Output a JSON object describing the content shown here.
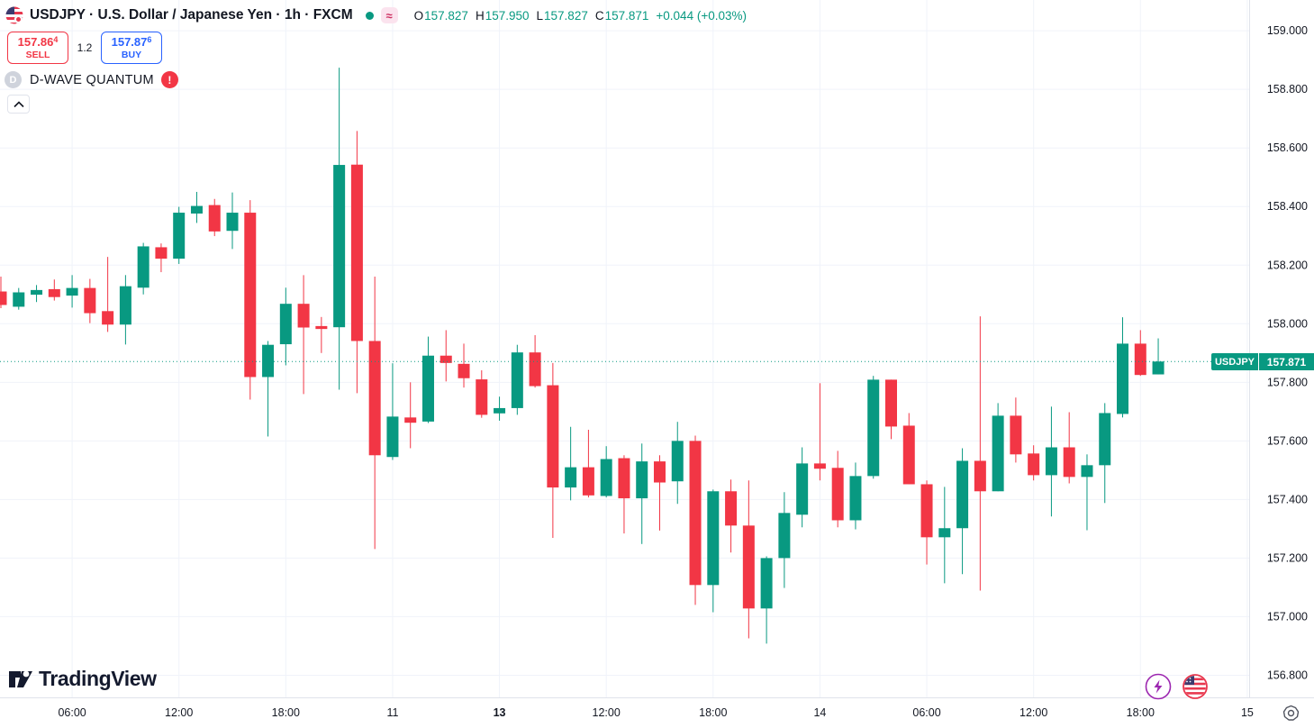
{
  "colors": {
    "up": "#089981",
    "down": "#F23645",
    "buy_blue": "#2962FF",
    "sell_red": "#F23645",
    "grid": "#F0F3FA",
    "axis_border": "#E0E3EB",
    "axis_text": "#131722",
    "last_price_line": "#089981",
    "lightning_purple": "#9C27B0",
    "flag_red": "#E8384F",
    "flag_blue": "#3C3B6E"
  },
  "header": {
    "title": "USDJPY · U.S. Dollar / Japanese Yen · 1h · FXCM",
    "approx_glyph": "≈",
    "ohlc": {
      "o_label": "O",
      "o": "157.827",
      "h_label": "H",
      "h": "157.950",
      "l_label": "L",
      "l": "157.827",
      "c_label": "C",
      "c": "157.871",
      "change": "+0.044 (+0.03%)"
    }
  },
  "trade_panel": {
    "sell_price": "157.86",
    "sell_sup": "4",
    "sell_label": "SELL",
    "spread": "1.2",
    "buy_price": "157.87",
    "buy_sup": "6",
    "buy_label": "BUY"
  },
  "alert_row": {
    "badge": "D",
    "name": "D-WAVE QUANTUM",
    "warning": "!"
  },
  "collapse_button": {
    "direction": "up"
  },
  "logo": {
    "text": "TradingView"
  },
  "price_badge": {
    "symbol": "USDJPY",
    "value": "157.871"
  },
  "chart_data": {
    "type": "candlestick",
    "symbol": "USDJPY",
    "interval": "1h",
    "exchange": "FXCM",
    "last_price": 157.871,
    "ylim": [
      156.723,
      159.105
    ],
    "grid": true,
    "y_ticks": [
      159.0,
      158.8,
      158.6,
      158.4,
      158.2,
      158.0,
      157.8,
      157.6,
      157.4,
      157.2,
      157.0,
      156.8
    ],
    "x_ticks": [
      {
        "i": 4,
        "label": "06:00",
        "bold": false
      },
      {
        "i": 10,
        "label": "12:00",
        "bold": false
      },
      {
        "i": 16,
        "label": "18:00",
        "bold": false
      },
      {
        "i": 22,
        "label": "11",
        "bold": false
      },
      {
        "i": 28,
        "label": "13",
        "bold": true
      },
      {
        "i": 34,
        "label": "12:00",
        "bold": false
      },
      {
        "i": 40,
        "label": "18:00",
        "bold": false
      },
      {
        "i": 46,
        "label": "14",
        "bold": false
      },
      {
        "i": 52,
        "label": "06:00",
        "bold": false
      },
      {
        "i": 58,
        "label": "12:00",
        "bold": false
      },
      {
        "i": 64,
        "label": "18:00",
        "bold": false
      },
      {
        "i": 70,
        "label": "15",
        "bold": false
      }
    ],
    "candles": [
      [
        158.11,
        158.161,
        158.053,
        158.064
      ],
      [
        158.058,
        158.122,
        158.048,
        158.107
      ],
      [
        158.099,
        158.132,
        158.074,
        158.115
      ],
      [
        158.118,
        158.151,
        158.079,
        158.091
      ],
      [
        158.096,
        158.166,
        158.055,
        158.122
      ],
      [
        158.122,
        158.153,
        158.002,
        158.036
      ],
      [
        158.043,
        158.228,
        157.972,
        157.997
      ],
      [
        157.997,
        158.166,
        157.929,
        158.128
      ],
      [
        158.123,
        158.276,
        158.1,
        158.264
      ],
      [
        158.261,
        158.274,
        158.176,
        158.222
      ],
      [
        158.222,
        158.399,
        158.204,
        158.379
      ],
      [
        158.376,
        158.45,
        158.344,
        158.402
      ],
      [
        158.405,
        158.426,
        158.299,
        158.315
      ],
      [
        158.317,
        158.448,
        158.255,
        158.379
      ],
      [
        158.379,
        158.422,
        157.741,
        157.818
      ],
      [
        157.818,
        157.941,
        157.615,
        157.928
      ],
      [
        157.93,
        158.123,
        157.858,
        158.068
      ],
      [
        158.068,
        158.166,
        157.76,
        157.987
      ],
      [
        157.992,
        158.023,
        157.9,
        157.982
      ],
      [
        157.988,
        158.874,
        157.775,
        158.542
      ],
      [
        158.543,
        158.658,
        157.763,
        157.941
      ],
      [
        157.941,
        158.161,
        157.231,
        157.551
      ],
      [
        157.545,
        157.865,
        157.535,
        157.683
      ],
      [
        157.68,
        157.8,
        157.575,
        157.662
      ],
      [
        157.666,
        157.956,
        157.661,
        157.891
      ],
      [
        157.891,
        157.978,
        157.803,
        157.866
      ],
      [
        157.863,
        157.932,
        157.782,
        157.814
      ],
      [
        157.81,
        157.841,
        157.679,
        157.689
      ],
      [
        157.694,
        157.751,
        157.669,
        157.712
      ],
      [
        157.712,
        157.928,
        157.689,
        157.902
      ],
      [
        157.902,
        157.961,
        157.782,
        157.787
      ],
      [
        157.79,
        157.866,
        157.269,
        157.441
      ],
      [
        157.441,
        157.648,
        157.397,
        157.51
      ],
      [
        157.51,
        157.638,
        157.407,
        157.414
      ],
      [
        157.412,
        157.582,
        157.407,
        157.538
      ],
      [
        157.541,
        157.551,
        157.284,
        157.404
      ],
      [
        157.404,
        157.591,
        157.248,
        157.53
      ],
      [
        157.53,
        157.551,
        157.294,
        157.458
      ],
      [
        157.462,
        157.665,
        157.385,
        157.6
      ],
      [
        157.6,
        157.618,
        157.04,
        157.108
      ],
      [
        157.108,
        157.434,
        157.015,
        157.428
      ],
      [
        157.428,
        157.468,
        157.219,
        157.311
      ],
      [
        157.311,
        157.465,
        156.926,
        157.028
      ],
      [
        157.028,
        157.206,
        156.908,
        157.2
      ],
      [
        157.2,
        157.425,
        157.098,
        157.354
      ],
      [
        157.348,
        157.578,
        157.305,
        157.523
      ],
      [
        157.523,
        157.797,
        157.465,
        157.505
      ],
      [
        157.508,
        157.566,
        157.305,
        157.329
      ],
      [
        157.329,
        157.526,
        157.298,
        157.48
      ],
      [
        157.48,
        157.822,
        157.471,
        157.809
      ],
      [
        157.809,
        157.809,
        157.606,
        157.649
      ],
      [
        157.652,
        157.695,
        157.452,
        157.452
      ],
      [
        157.452,
        157.465,
        157.178,
        157.271
      ],
      [
        157.271,
        157.443,
        157.114,
        157.302
      ],
      [
        157.302,
        157.575,
        157.145,
        157.532
      ],
      [
        157.532,
        158.025,
        157.089,
        157.428
      ],
      [
        157.428,
        157.729,
        157.428,
        157.686
      ],
      [
        157.686,
        157.748,
        157.526,
        157.554
      ],
      [
        157.557,
        157.585,
        157.465,
        157.483
      ],
      [
        157.483,
        157.717,
        157.342,
        157.578
      ],
      [
        157.578,
        157.698,
        157.455,
        157.477
      ],
      [
        157.477,
        157.554,
        157.295,
        157.517
      ],
      [
        157.517,
        157.729,
        157.388,
        157.695
      ],
      [
        157.692,
        158.022,
        157.68,
        157.932
      ],
      [
        157.932,
        157.978,
        157.822,
        157.825
      ],
      [
        157.827,
        157.95,
        157.827,
        157.871
      ]
    ]
  }
}
